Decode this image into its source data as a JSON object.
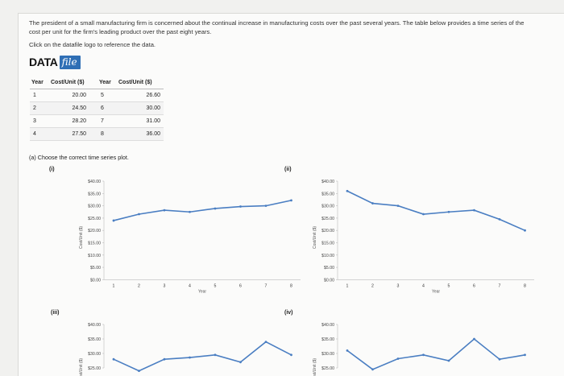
{
  "problem": {
    "intro_line1": "The president of a small manufacturing firm is concerned about the continual increase in manufacturing costs over the past several years. The table below provides a time series of the",
    "intro_line2": "cost per unit for the firm's leading product over the past eight years.",
    "click_text": "Click on the datafile logo to reference the data.",
    "logo_data": "DATA",
    "logo_file": "file"
  },
  "table": {
    "headers": [
      "Year",
      "Cost/Unit ($)",
      "Year",
      "Cost/Unit ($)"
    ],
    "rows": [
      [
        "1",
        "20.00",
        "5",
        "26.60"
      ],
      [
        "2",
        "24.50",
        "6",
        "30.00"
      ],
      [
        "3",
        "28.20",
        "7",
        "31.00"
      ],
      [
        "4",
        "27.50",
        "8",
        "36.00"
      ]
    ]
  },
  "question": {
    "text": "(a) Choose the correct time series plot."
  },
  "options": {
    "i": "(i)",
    "ii": "(ii)",
    "iii": "(iii)",
    "iv": "(iv)"
  },
  "colors": {
    "series": "#4a7ec2",
    "logo_bg": "#2f6fb5"
  },
  "chart_data": [
    {
      "type": "line",
      "option": "(i)",
      "x": [
        1,
        2,
        3,
        4,
        5,
        6,
        7,
        8
      ],
      "values": [
        24.0,
        26.6,
        28.2,
        27.5,
        28.9,
        29.7,
        30.0,
        32.2
      ],
      "xlabel": "Year",
      "ylabel": "Cost/Unit ($)",
      "yticks": [
        "$40.00",
        "$35.00",
        "$30.00",
        "$25.00",
        "$20.00",
        "$15.00",
        "$10.00",
        "$5.00",
        "$0.00"
      ],
      "xticks": [
        "1",
        "2",
        "3",
        "4",
        "5",
        "6",
        "7",
        "8"
      ],
      "ylim": [
        0,
        40
      ]
    },
    {
      "type": "line",
      "option": "(ii)",
      "x": [
        1,
        2,
        3,
        4,
        5,
        6,
        7,
        8
      ],
      "values": [
        36.0,
        31.0,
        30.0,
        26.6,
        27.5,
        28.2,
        24.5,
        20.0
      ],
      "xlabel": "Year",
      "ylabel": "Cost/Unit ($)",
      "yticks": [
        "$40.00",
        "$35.00",
        "$30.00",
        "$25.00",
        "$20.00",
        "$15.00",
        "$10.00",
        "$5.00",
        "$0.00"
      ],
      "xticks": [
        "1",
        "2",
        "3",
        "4",
        "5",
        "6",
        "7",
        "8"
      ],
      "ylim": [
        0,
        40
      ]
    },
    {
      "type": "line",
      "option": "(iii)",
      "x": [
        1,
        2,
        3,
        4,
        5,
        6,
        7,
        8
      ],
      "values": [
        28.0,
        24.0,
        28.0,
        28.6,
        29.5,
        27.0,
        34.0,
        29.5
      ],
      "xlabel": "",
      "ylabel": "Cost/Unit ($)",
      "yticks": [
        "$40.00",
        "$35.00",
        "$30.00",
        "$25.00"
      ],
      "xticks": [],
      "ylim": [
        25,
        40
      ]
    },
    {
      "type": "line",
      "option": "(iv)",
      "x": [
        1,
        2,
        3,
        4,
        5,
        6,
        7,
        8
      ],
      "values": [
        31.0,
        24.5,
        28.2,
        29.5,
        27.5,
        35.0,
        28.0,
        29.5
      ],
      "xlabel": "",
      "ylabel": "Cost/Unit ($)",
      "yticks": [
        "$40.00",
        "$35.00",
        "$30.00",
        "$25.00"
      ],
      "xticks": [],
      "ylim": [
        25,
        40
      ]
    }
  ]
}
